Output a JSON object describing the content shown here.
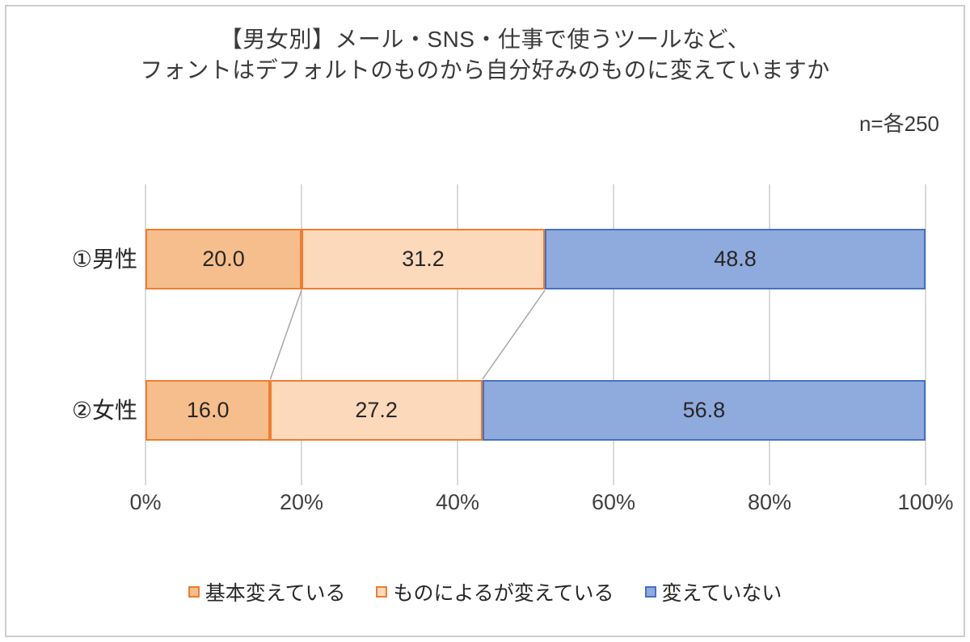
{
  "title": {
    "line1": "【男女別】メール・SNS・仕事で使うツールなど、",
    "line2": "フォントはデフォルトのものから自分好みのものに変えていますか"
  },
  "chart_data": {
    "type": "bar",
    "variant": "horizontal-stacked",
    "title": "【男女別】メール・SNS・仕事で使うツールなど、フォントはデフォルトのものから自分好みのものに変えていますか",
    "sample_note": "n=各250",
    "categories": [
      "①男性",
      "②女性"
    ],
    "series": [
      {
        "name": "基本変えている",
        "values": [
          20.0,
          16.0
        ],
        "fill": "#F6BE8C",
        "border": "#ED7D31"
      },
      {
        "name": "ものによるが変えている",
        "values": [
          31.2,
          27.2
        ],
        "fill": "#FCD9BB",
        "border": "#ED7D31"
      },
      {
        "name": "変えていない",
        "values": [
          48.8,
          56.8
        ],
        "fill": "#8FAADC",
        "border": "#4472C4"
      }
    ],
    "x_axis": {
      "min": 0,
      "max": 100,
      "ticks": [
        "0%",
        "20%",
        "40%",
        "60%",
        "80%",
        "100%"
      ],
      "grid": true
    },
    "legend_position": "bottom",
    "value_format": "one-decimal",
    "colors": {
      "gridline": "#D9D9D9",
      "connector_line": "#A6A6A6",
      "text": "#262626"
    }
  }
}
